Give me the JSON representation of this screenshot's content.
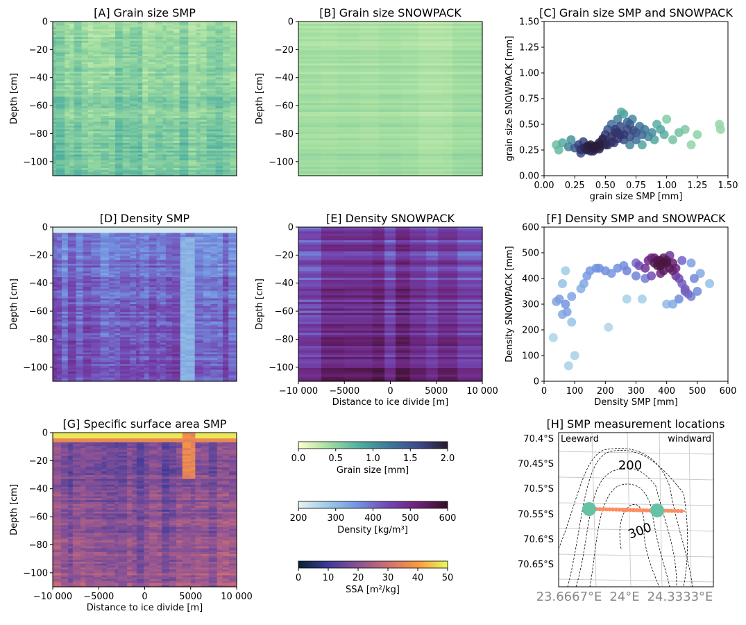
{
  "chart_data": [
    {
      "id": "A",
      "type": "heatmap",
      "title": "[A] Grain size SMP",
      "ylabel": "Depth [cm]",
      "ylim": [
        -110,
        0
      ],
      "yticks": [
        "0",
        "−20",
        "−40",
        "−60",
        "−80",
        "−100"
      ],
      "xticks": [],
      "colormap": "grain",
      "vrange": [
        0,
        2
      ],
      "typical": [
        0.25,
        0.8
      ]
    },
    {
      "id": "B",
      "type": "heatmap",
      "title": "[B] Grain size SNOWPACK",
      "ylabel": "Depth [cm]",
      "ylim": [
        -110,
        0
      ],
      "yticks": [
        "0",
        "−20",
        "−40",
        "−60",
        "−80",
        "−100"
      ],
      "xticks": [],
      "colormap": "grain",
      "vrange": [
        0,
        2
      ],
      "typical": [
        0.25,
        0.5
      ]
    },
    {
      "id": "C",
      "type": "scatter",
      "title": "[C] Grain size SMP and SNOWPACK",
      "xlabel": "grain size SMP [mm]",
      "ylabel": "grain size SNOWPACK [mm]",
      "xlim": [
        0,
        1.5
      ],
      "ylim": [
        0,
        1.5
      ],
      "xticks": [
        "0.00",
        "0.25",
        "0.50",
        "0.75",
        "1.00",
        "1.25",
        "1.50"
      ],
      "yticks": [
        "0.00",
        "0.25",
        "0.50",
        "0.75",
        "1.00",
        "1.25",
        "1.50"
      ],
      "colormap": "grain-density",
      "x": [
        0.1,
        0.12,
        0.15,
        0.2,
        0.22,
        0.25,
        0.28,
        0.3,
        0.32,
        0.35,
        0.35,
        0.38,
        0.4,
        0.4,
        0.42,
        0.45,
        0.45,
        0.48,
        0.5,
        0.5,
        0.52,
        0.55,
        0.55,
        0.58,
        0.6,
        0.6,
        0.62,
        0.65,
        0.65,
        0.68,
        0.7,
        0.7,
        0.72,
        0.75,
        0.75,
        0.78,
        0.8,
        0.82,
        0.85,
        0.88,
        0.9,
        0.92,
        0.95,
        0.98,
        1.0,
        1.05,
        1.1,
        1.15,
        1.2,
        1.25,
        1.43,
        1.44,
        0.3,
        0.35,
        0.4,
        0.38,
        0.33,
        0.42,
        0.36,
        0.45,
        0.5,
        0.55,
        0.6,
        0.65,
        0.7,
        0.58,
        0.62,
        0.48,
        0.52,
        0.3,
        0.45,
        0.68,
        0.73,
        0.8,
        0.57,
        0.63
      ],
      "y": [
        0.3,
        0.25,
        0.32,
        0.28,
        0.35,
        0.27,
        0.3,
        0.26,
        0.33,
        0.28,
        0.25,
        0.3,
        0.27,
        0.24,
        0.29,
        0.32,
        0.26,
        0.35,
        0.3,
        0.4,
        0.45,
        0.33,
        0.5,
        0.42,
        0.36,
        0.55,
        0.48,
        0.4,
        0.6,
        0.45,
        0.38,
        0.5,
        0.55,
        0.42,
        0.35,
        0.48,
        0.4,
        0.45,
        0.38,
        0.42,
        0.35,
        0.5,
        0.45,
        0.4,
        0.55,
        0.35,
        0.42,
        0.45,
        0.3,
        0.4,
        0.5,
        0.45,
        0.25,
        0.26,
        0.28,
        0.24,
        0.27,
        0.26,
        0.29,
        0.3,
        0.32,
        0.38,
        0.42,
        0.35,
        0.3,
        0.45,
        0.4,
        0.36,
        0.3,
        0.22,
        0.28,
        0.52,
        0.44,
        0.3,
        0.32,
        0.62
      ]
    },
    {
      "id": "D",
      "type": "heatmap",
      "title": "[D] Density SMP",
      "ylabel": "Depth [cm]",
      "ylim": [
        -110,
        0
      ],
      "yticks": [
        "0",
        "−20",
        "−40",
        "−60",
        "−80",
        "−100"
      ],
      "xticks": [],
      "colormap": "density",
      "vrange": [
        200,
        600
      ],
      "typical": [
        330,
        480
      ]
    },
    {
      "id": "E",
      "type": "heatmap",
      "title": "[E] Density SNOWPACK",
      "xlabel": "Distance to ice divide [m]",
      "ylabel": "Depth [cm]",
      "xlim": [
        -10000,
        10000
      ],
      "ylim": [
        -110,
        0
      ],
      "xticks": [
        "−10 000",
        "−5000",
        "0",
        "5000",
        "10 000"
      ],
      "yticks": [
        "0",
        "−20",
        "−40",
        "−60",
        "−80",
        "−100"
      ],
      "colormap": "density",
      "vrange": [
        200,
        600
      ],
      "typical": [
        380,
        560
      ]
    },
    {
      "id": "F",
      "type": "scatter",
      "title": "[F] Density SMP and SNOWPACK",
      "xlabel": "Density SMP [mm]",
      "ylabel": "Density SNOWPACK [mm]",
      "xlim": [
        0,
        600
      ],
      "ylim": [
        0,
        600
      ],
      "xticks": [
        "0",
        "100",
        "200",
        "300",
        "400",
        "500",
        "600"
      ],
      "yticks": [
        "0",
        "100",
        "200",
        "300",
        "400",
        "500",
        "600"
      ],
      "colormap": "density-density",
      "x": [
        30,
        40,
        50,
        60,
        70,
        75,
        80,
        90,
        100,
        70,
        60,
        90,
        130,
        120,
        140,
        210,
        150,
        170,
        180,
        200,
        220,
        240,
        260,
        270,
        300,
        310,
        320,
        330,
        340,
        350,
        360,
        370,
        380,
        390,
        400,
        410,
        420,
        430,
        440,
        450,
        460,
        470,
        480,
        490,
        500,
        510,
        540,
        380,
        390,
        400,
        370,
        360,
        410,
        420,
        430,
        380,
        350,
        400,
        440,
        460,
        420,
        480,
        450,
        390,
        330,
        300,
        270
      ],
      "y": [
        170,
        310,
        320,
        260,
        300,
        270,
        60,
        230,
        100,
        430,
        380,
        330,
        380,
        360,
        410,
        210,
        430,
        440,
        440,
        430,
        420,
        440,
        450,
        430,
        460,
        450,
        320,
        440,
        470,
        480,
        460,
        470,
        450,
        480,
        460,
        440,
        430,
        410,
        400,
        380,
        360,
        340,
        330,
        400,
        350,
        420,
        380,
        470,
        460,
        470,
        450,
        480,
        490,
        460,
        440,
        420,
        410,
        300,
        320,
        350,
        300,
        460,
        470,
        430,
        400,
        410,
        320
      ]
    },
    {
      "id": "G",
      "type": "heatmap",
      "title": "[G] Specific surface area SMP",
      "xlabel": "Distance to ice divide [m]",
      "ylabel": "Depth [cm]",
      "xlim": [
        -10000,
        10000
      ],
      "ylim": [
        -110,
        0
      ],
      "xticks": [
        "−10 000",
        "−5000",
        "0",
        "5000",
        "10 000"
      ],
      "yticks": [
        "0",
        "−20",
        "−40",
        "−60",
        "−80",
        "−100"
      ],
      "colormap": "ssa",
      "vrange": [
        0,
        50
      ],
      "typical": [
        10,
        28
      ]
    }
  ],
  "colorbars": [
    {
      "label": "Grain size [mm]",
      "ticks": [
        "0.0",
        "0.5",
        "1.0",
        "1.5",
        "2.0"
      ],
      "colors": [
        "#fdfecc",
        "#a5dfa0",
        "#50b1a0",
        "#3d7a9a",
        "#3d4b8c",
        "#281a2c"
      ]
    },
    {
      "label": "Density [kg/m³]",
      "ticks": [
        "200",
        "300",
        "400",
        "500",
        "600"
      ],
      "colors": [
        "#e6f1f1",
        "#9ccbe6",
        "#7292e0",
        "#7347b2",
        "#6b2277",
        "#360e24"
      ]
    },
    {
      "label": "SSA [m²/kg]",
      "ticks": [
        "0",
        "10",
        "20",
        "30",
        "40",
        "50"
      ],
      "colors": [
        "#042333",
        "#3e3a9a",
        "#8a5296",
        "#d06f72",
        "#f99a3e",
        "#e8fa5b"
      ]
    }
  ],
  "map": {
    "title": "[H] SMP measurement locations",
    "left_label": "Leeward",
    "right_label": "windward",
    "lat_ticks": [
      "70.4°S",
      "70.45°S",
      "70.5°S",
      "70.55°S",
      "70.6°S",
      "70.65°S"
    ],
    "lon_ticks": [
      "23.6667°E",
      "24°E",
      "24.3333°E"
    ],
    "contour_labels": [
      "200",
      "300"
    ],
    "point_color": "#fc8d62",
    "station_color": "#66c2a5"
  }
}
